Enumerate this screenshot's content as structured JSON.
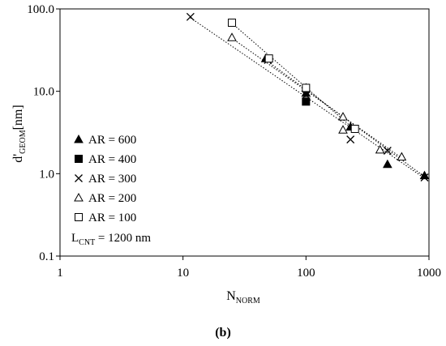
{
  "chart_data": {
    "type": "scatter",
    "panel_label": "(b)",
    "xlabel": {
      "main": "N",
      "sub": "NORM"
    },
    "ylabel": {
      "main": "d'",
      "sub": "GEOM",
      "unit": "[nm]"
    },
    "xscale": "log",
    "yscale": "log",
    "xlim": [
      1,
      1000
    ],
    "ylim": [
      0.1,
      100
    ],
    "x_ticks": [
      {
        "value": 1,
        "label": "1"
      },
      {
        "value": 10,
        "label": "10"
      },
      {
        "value": 100,
        "label": "100"
      },
      {
        "value": 1000,
        "label": "1000"
      }
    ],
    "y_ticks": [
      {
        "value": 0.1,
        "label": "0.1"
      },
      {
        "value": 1,
        "label": "1.0"
      },
      {
        "value": 10,
        "label": "10.0"
      },
      {
        "value": 100,
        "label": "100.0"
      }
    ],
    "grid": false,
    "legend_position": "left",
    "annotation": {
      "main": "L",
      "sub": "CNT",
      "rest": " = 1200 nm"
    },
    "series": [
      {
        "name": "AR = 600",
        "marker": "filled-triangle",
        "points": [
          [
            47,
            25
          ],
          [
            100,
            9.5
          ],
          [
            230,
            3.7
          ],
          [
            460,
            1.3
          ],
          [
            920,
            0.95
          ]
        ],
        "trendline": [
          [
            47,
            24
          ],
          [
            920,
            0.92
          ]
        ]
      },
      {
        "name": "AR = 400",
        "marker": "filled-square",
        "points": [
          [
            100,
            7.5
          ]
        ],
        "trendline": null
      },
      {
        "name": "AR = 300",
        "marker": "cross",
        "points": [
          [
            11.5,
            80
          ],
          [
            49,
            24
          ],
          [
            100,
            9
          ],
          [
            230,
            2.6
          ],
          [
            460,
            1.9
          ],
          [
            920,
            0.9
          ]
        ],
        "trendline": [
          [
            11.5,
            78
          ],
          [
            920,
            0.88
          ]
        ]
      },
      {
        "name": "AR = 200",
        "marker": "open-triangle",
        "points": [
          [
            25,
            45
          ],
          [
            100,
            11
          ],
          [
            200,
            4.9
          ],
          [
            200,
            3.4
          ],
          [
            400,
            1.95
          ],
          [
            600,
            1.6
          ]
        ],
        "trendline": [
          [
            25,
            44
          ],
          [
            600,
            1.55
          ]
        ]
      },
      {
        "name": "AR = 100",
        "marker": "open-square",
        "points": [
          [
            25,
            68
          ],
          [
            50,
            25
          ],
          [
            100,
            11
          ],
          [
            250,
            3.5
          ]
        ],
        "trendline": [
          [
            25,
            67
          ],
          [
            250,
            3.4
          ]
        ]
      }
    ]
  }
}
